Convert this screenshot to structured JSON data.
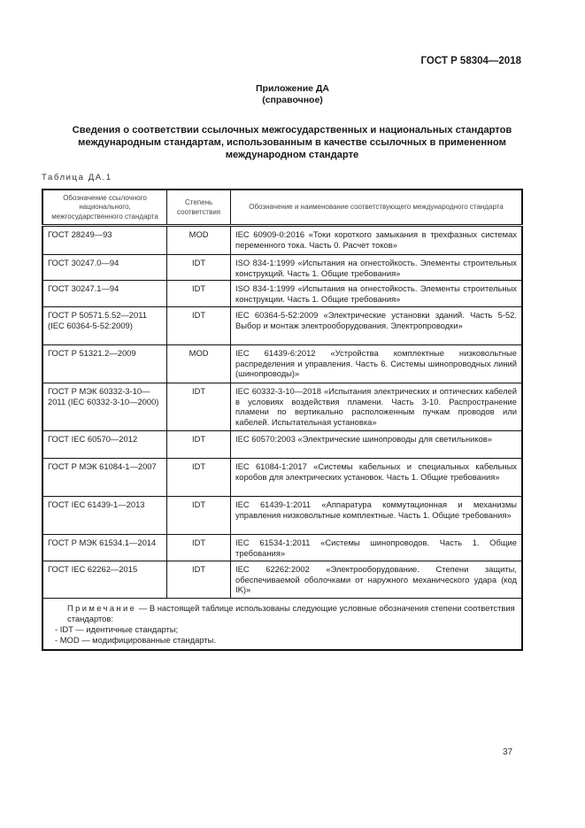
{
  "header": {
    "doc_id": "ГОСТ Р 58304—2018"
  },
  "appendix": {
    "title": "Приложение ДА",
    "subtitle": "(справочное)"
  },
  "section_title": "Сведения о соответствии ссылочных межгосударственных и национальных стандартов международным стандартам, использованным в качестве ссылочных в примененном международном стандарте",
  "table": {
    "caption": "Таблица ДА.1",
    "headers": [
      "Обозначение ссылочного национального, межгосударственного стандарта",
      "Степень соответствия",
      "Обозначение и наименование соответствующего международного стандарта"
    ],
    "rows": [
      {
        "national": "ГОСТ 28249—93",
        "degree": "MOD",
        "international": "IEC 60909-0:2016 «Токи короткого замыкания в трехфазных системах переменного тока. Часть 0. Расчет токов»"
      },
      {
        "national": "ГОСТ 30247.0—94",
        "degree": "IDT",
        "international": "ISO 834-1:1999 «Испытания на огнестойкость. Элементы строительных конструкций. Часть 1. Общие требования»"
      },
      {
        "national": "ГОСТ 30247.1—94",
        "degree": "IDT",
        "international": "ISO 834-1:1999 «Испытания на огнестойкость. Элементы строительных конструкции. Часть 1. Общие требования»"
      },
      {
        "national": "ГОСТ Р 50571.5.52—2011 (IEC 60364-5-52:2009)",
        "degree": "IDT",
        "international": "IEC 60364-5-52:2009 «Электрические установки зданий. Часть 5-52. Выбор и монтаж электрооборудования. Электро­проводки»"
      },
      {
        "national": "ГОСТ Р 51321.2—2009",
        "degree": "MOD",
        "international": "IEC 61439-6:2012 «Устройства комплектные низковольтные распределения и управления. Часть 6. Системы шинопровод­ных линий (шинопроводы)»"
      },
      {
        "national": "ГОСТ Р МЭК 60332-3-10—2011 (IEC 60332-3-10—2000)",
        "degree": "IDT",
        "international": "IEC 60332-3-10—2018 «Испытания электрических и оптиче­ских кабелей в условиях воздействия пламени. Часть 3-10. Распространение пламени по вертикально расположенным пучкам проводов или кабелей. Испытательная установка»"
      },
      {
        "national": "ГОСТ IEC 60570—2012",
        "degree": "IDT",
        "international": "IEC 60570:2003 «Электрические шинопроводы для светиль­ников»"
      },
      {
        "national": "ГОСТ Р МЭК 61084-1—2007",
        "degree": "IDT",
        "international": "IEC 61084-1:2017 «Системы кабельных и специальных ка­бельных коробов для электрических установок. Часть 1. Об­щие требования»"
      },
      {
        "national": "ГОСТ IEC 61439-1—2013",
        "degree": "IDT",
        "international": "IEC 61439-1:2011 «Аппаратура коммутационная и механиз­мы управления низковольтные комплектные. Часть 1. Общие требования»"
      },
      {
        "national": "ГОСТ Р МЭК 61534.1—2014",
        "degree": "IDT",
        "international": "IEC 61534-1:2011 «Системы шинопроводов. Часть 1. Общие требования»"
      },
      {
        "national": "ГОСТ IEC 62262—2015",
        "degree": "IDT",
        "international": "IEC 62262:2002 «Электрооборудование. Степени защиты, обеспечиваемой оболочками от наружного механического удара (код IK)»"
      }
    ],
    "note": {
      "label": "Примечание",
      "text": " — В настоящей таблице использованы следующие условные обозначения степени соот­ветствия стандартов:",
      "items": [
        "- IDT — идентичные стандарты;",
        "- MOD — модифицированные стандарты."
      ]
    }
  },
  "page_number": "37"
}
